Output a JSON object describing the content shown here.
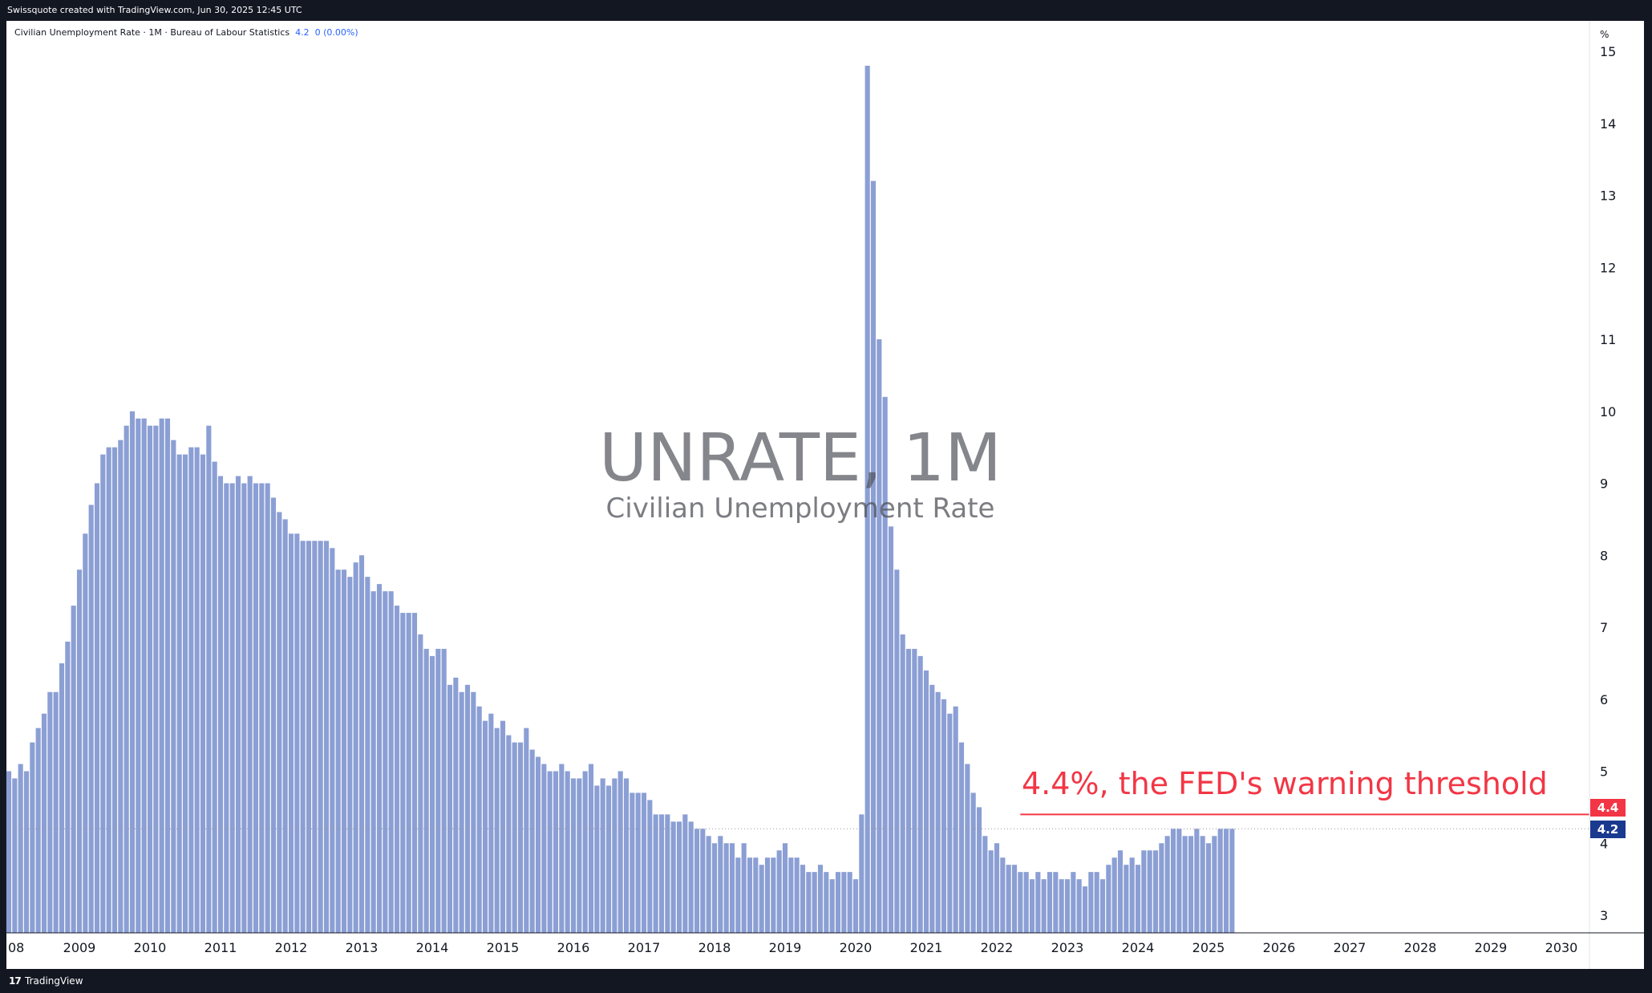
{
  "header": {
    "attribution": "Swissquote created with TradingView.com, Jun 30, 2025 12:45 UTC"
  },
  "legend": {
    "symbol_text": "Civilian Unemployment Rate · 1M · Bureau of Labour Statistics",
    "last_value": "4.2",
    "change": "0 (0.00%)"
  },
  "watermark": {
    "title": "UNRATE, 1M",
    "subtitle": "Civilian Unemployment Rate"
  },
  "annotation": {
    "text": "4.4%, the FED's warning threshold"
  },
  "price_scale": {
    "unit": "%",
    "threshold_badge": "4.4",
    "last_badge": "4.2"
  },
  "footer": {
    "logo_mark": "17",
    "brand": "TradingView"
  },
  "colors": {
    "bars": "#8b9fd4",
    "threshold": "#f23645",
    "last_badge": "#1a3a8f",
    "frame": "#131722"
  },
  "chart_data": {
    "type": "bar",
    "series_name": "UNRATE",
    "start": "2008-01",
    "interval": "1M",
    "values": [
      5.0,
      4.9,
      5.1,
      5.0,
      5.4,
      5.6,
      5.8,
      6.1,
      6.1,
      6.5,
      6.8,
      7.3,
      7.8,
      8.3,
      8.7,
      9.0,
      9.4,
      9.5,
      9.5,
      9.6,
      9.8,
      10.0,
      9.9,
      9.9,
      9.8,
      9.8,
      9.9,
      9.9,
      9.6,
      9.4,
      9.4,
      9.5,
      9.5,
      9.4,
      9.8,
      9.3,
      9.1,
      9.0,
      9.0,
      9.1,
      9.0,
      9.1,
      9.0,
      9.0,
      9.0,
      8.8,
      8.6,
      8.5,
      8.3,
      8.3,
      8.2,
      8.2,
      8.2,
      8.2,
      8.2,
      8.1,
      7.8,
      7.8,
      7.7,
      7.9,
      8.0,
      7.7,
      7.5,
      7.6,
      7.5,
      7.5,
      7.3,
      7.2,
      7.2,
      7.2,
      6.9,
      6.7,
      6.6,
      6.7,
      6.7,
      6.2,
      6.3,
      6.1,
      6.2,
      6.1,
      5.9,
      5.7,
      5.8,
      5.6,
      5.7,
      5.5,
      5.4,
      5.4,
      5.6,
      5.3,
      5.2,
      5.1,
      5.0,
      5.0,
      5.1,
      5.0,
      4.9,
      4.9,
      5.0,
      5.1,
      4.8,
      4.9,
      4.8,
      4.9,
      5.0,
      4.9,
      4.7,
      4.7,
      4.7,
      4.6,
      4.4,
      4.4,
      4.4,
      4.3,
      4.3,
      4.4,
      4.3,
      4.2,
      4.2,
      4.1,
      4.0,
      4.1,
      4.0,
      4.0,
      3.8,
      4.0,
      3.8,
      3.8,
      3.7,
      3.8,
      3.8,
      3.9,
      4.0,
      3.8,
      3.8,
      3.7,
      3.6,
      3.6,
      3.7,
      3.6,
      3.5,
      3.6,
      3.6,
      3.6,
      3.5,
      4.4,
      14.8,
      13.2,
      11.0,
      10.2,
      8.4,
      7.8,
      6.9,
      6.7,
      6.7,
      6.6,
      6.4,
      6.2,
      6.1,
      6.0,
      5.8,
      5.9,
      5.4,
      5.1,
      4.7,
      4.5,
      4.1,
      3.9,
      4.0,
      3.8,
      3.7,
      3.7,
      3.6,
      3.6,
      3.5,
      3.6,
      3.5,
      3.6,
      3.6,
      3.5,
      3.5,
      3.6,
      3.5,
      3.4,
      3.6,
      3.6,
      3.5,
      3.7,
      3.8,
      3.9,
      3.7,
      3.8,
      3.7,
      3.9,
      3.9,
      3.9,
      4.0,
      4.1,
      4.2,
      4.2,
      4.1,
      4.1,
      4.2,
      4.1,
      4.0,
      4.1,
      4.2,
      4.2,
      4.2
    ],
    "x_tick_labels": [
      "08",
      "2009",
      "2010",
      "2011",
      "2012",
      "2013",
      "2014",
      "2015",
      "2016",
      "2017",
      "2018",
      "2019",
      "2020",
      "2021",
      "2022",
      "2023",
      "2024",
      "2025",
      "2026",
      "2027",
      "2028",
      "2029",
      "2030"
    ],
    "x_tick_years": [
      2008,
      2009,
      2010,
      2011,
      2012,
      2013,
      2014,
      2015,
      2016,
      2017,
      2018,
      2019,
      2020,
      2021,
      2022,
      2023,
      2024,
      2025,
      2026,
      2027,
      2028,
      2029,
      2030
    ],
    "y_ticks": [
      3,
      4,
      5,
      6,
      7,
      8,
      9,
      10,
      11,
      12,
      13,
      14,
      15
    ],
    "y_range": [
      2.75,
      15.3
    ],
    "threshold": 4.4,
    "threshold_start": "2022-05",
    "last_value": 4.2,
    "grid": false
  }
}
